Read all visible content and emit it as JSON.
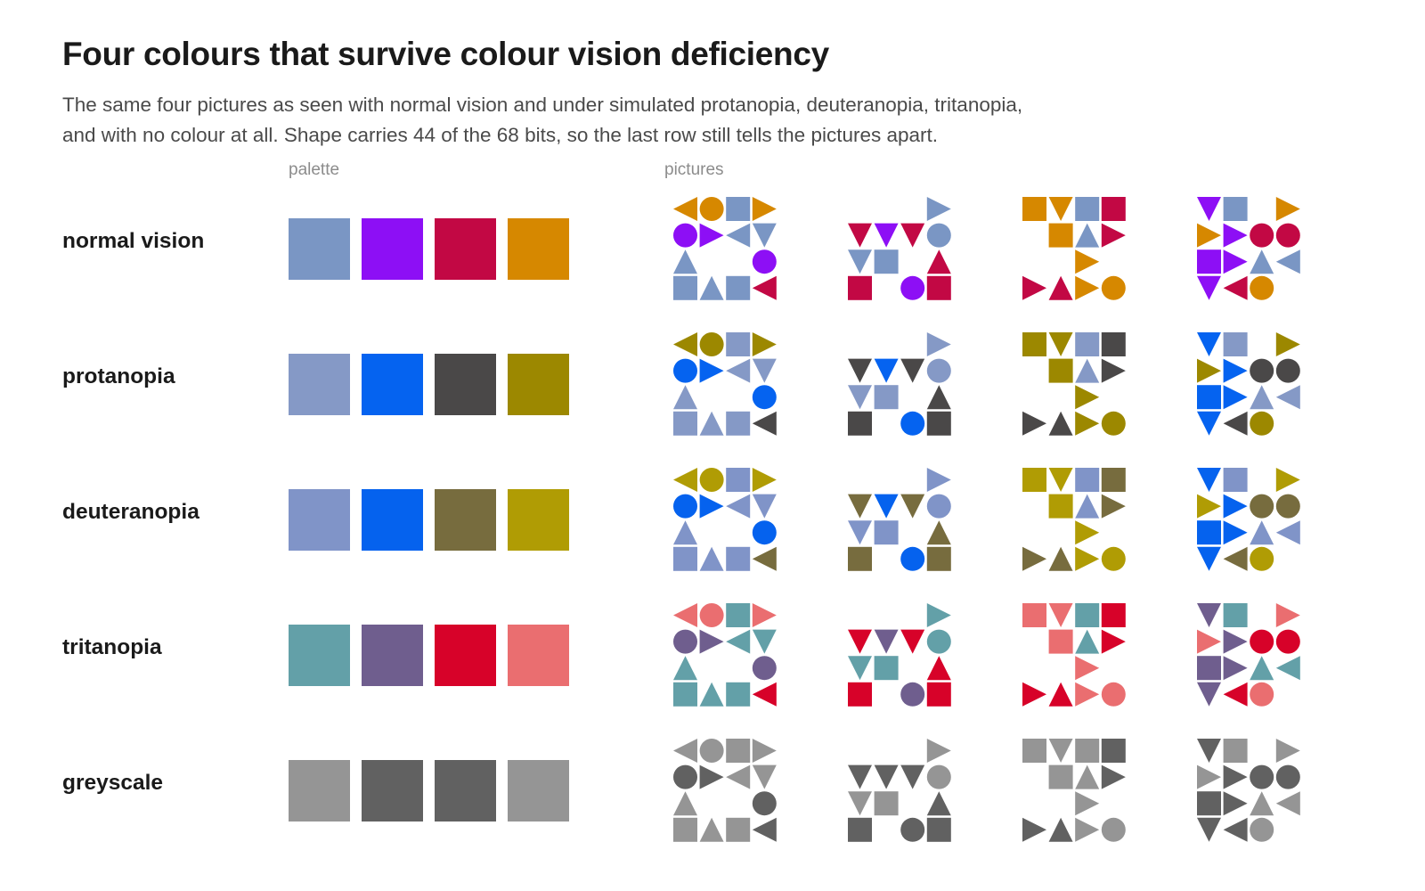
{
  "title": "Four colours that survive colour vision deficiency",
  "subtitle": [
    "The same four pictures as seen with normal vision and under simulated protanopia, deuteranopia, tritanopia,",
    "and with no colour at all. Shape carries 44 of the 68 bits, so the last row still tells the pictures apart."
  ],
  "columns": {
    "palette": "palette",
    "pictures": "pictures"
  },
  "rows": [
    {
      "label": "normal vision",
      "palette": [
        "#7a96c4",
        "#8d0ff5",
        "#c20844",
        "#d68800"
      ]
    },
    {
      "label": "protanopia",
      "palette": [
        "#8599c6",
        "#0563f0",
        "#4a4848",
        "#9c8800"
      ]
    },
    {
      "label": "deuteranopia",
      "palette": [
        "#8094c8",
        "#0562ee",
        "#776c3e",
        "#b09c04"
      ]
    },
    {
      "label": "tritanopia",
      "palette": [
        "#63a0a8",
        "#6f5e8e",
        "#d70229",
        "#ea6e70"
      ]
    },
    {
      "label": "greyscale",
      "palette": [
        "#959595",
        "#616161",
        "#616161",
        "#959595"
      ]
    }
  ],
  "glyph_legend": [
    "square",
    "circle",
    "triangle-up",
    "triangle-down",
    "triangle-left",
    "triangle-right"
  ],
  "pictures": [
    [
      [
        "tl3",
        "c3",
        "s0",
        "tr3"
      ],
      [
        "c1",
        "tr1",
        "tl0",
        "td0"
      ],
      [
        "tu0",
        "",
        "",
        "c1"
      ],
      [
        "s0",
        "tu0",
        "s0",
        "tl2"
      ]
    ],
    [
      [
        "",
        "",
        "",
        "tr0"
      ],
      [
        "td2",
        "td1",
        "td2",
        "c0"
      ],
      [
        "td0",
        "s0",
        "",
        "tu2"
      ],
      [
        "s2",
        "",
        "c1",
        "s2"
      ]
    ],
    [
      [
        "s3",
        "td3",
        "s0",
        "s2"
      ],
      [
        "",
        "s3",
        "tu0",
        "tr2"
      ],
      [
        "",
        "",
        "tr3",
        ""
      ],
      [
        "tr2",
        "tu2",
        "tr3",
        "c3"
      ]
    ],
    [
      [
        "td1",
        "s0",
        "",
        "tr3"
      ],
      [
        "tr3",
        "tr1",
        "c2",
        "c2"
      ],
      [
        "s1",
        "tr1",
        "tu0",
        "tl0"
      ],
      [
        "td1",
        "tl2",
        "c3",
        ""
      ]
    ]
  ]
}
